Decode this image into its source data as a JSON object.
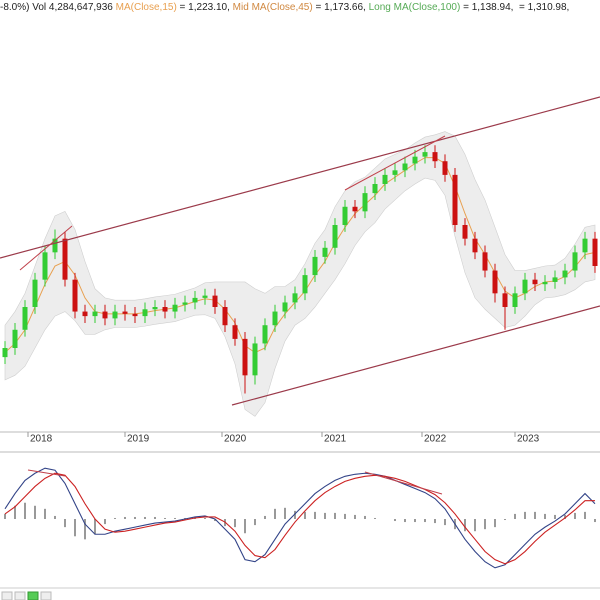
{
  "chart_data": {
    "type": "candlestick",
    "header": [
      {
        "text": "-8.0%) Vol 4,284,647,936 ",
        "color": "#222222"
      },
      {
        "text": "MA(Close,15)",
        "color": "#e8a050"
      },
      {
        "text": " = 1,223.10, ",
        "color": "#222222"
      },
      {
        "text": "Mid MA(Close,45)",
        "color": "#d08840"
      },
      {
        "text": " = 1,173.66, ",
        "color": "#222222"
      },
      {
        "text": "Long MA(Close,100)",
        "color": "#55aa55"
      },
      {
        "text": " = 1,138.94, ",
        "color": "#222222"
      },
      {
        "text": " = 1,310.98,",
        "color": "#222222"
      }
    ],
    "x": [
      0,
      1,
      2,
      3,
      4,
      5,
      6,
      7,
      8,
      9,
      10,
      11,
      12,
      13,
      14,
      15,
      16,
      17,
      18,
      19,
      20,
      21,
      22,
      23,
      24,
      25,
      26,
      27,
      28,
      29,
      30,
      31,
      32,
      33,
      34,
      35,
      36,
      37,
      38,
      39,
      40,
      41,
      42,
      43,
      44,
      45,
      46,
      47,
      48,
      49,
      50,
      51,
      52,
      53,
      54,
      55,
      56,
      57,
      58,
      59
    ],
    "open": [
      760,
      780,
      820,
      870,
      930,
      990,
      1020,
      930,
      860,
      850,
      860,
      845,
      860,
      855,
      850,
      865,
      870,
      860,
      875,
      880,
      890,
      895,
      870,
      830,
      800,
      720,
      790,
      830,
      860,
      880,
      900,
      940,
      980,
      1000,
      1050,
      1090,
      1080,
      1120,
      1140,
      1160,
      1170,
      1185,
      1200,
      1210,
      1190,
      1160,
      1050,
      1020,
      990,
      950,
      900,
      870,
      900,
      930,
      920,
      925,
      935,
      950,
      990,
      1020
    ],
    "high": [
      795,
      835,
      885,
      945,
      1005,
      1040,
      1035,
      945,
      875,
      875,
      875,
      875,
      875,
      870,
      880,
      885,
      885,
      890,
      895,
      905,
      910,
      910,
      885,
      845,
      815,
      805,
      845,
      875,
      895,
      915,
      955,
      995,
      1015,
      1065,
      1105,
      1105,
      1135,
      1155,
      1175,
      1185,
      1200,
      1215,
      1225,
      1225,
      1205,
      1175,
      1065,
      1035,
      1005,
      965,
      915,
      915,
      945,
      945,
      940,
      950,
      965,
      1005,
      1035,
      1035
    ],
    "low": [
      745,
      765,
      805,
      855,
      915,
      975,
      915,
      845,
      835,
      835,
      830,
      830,
      840,
      835,
      835,
      850,
      845,
      845,
      860,
      865,
      875,
      855,
      815,
      785,
      680,
      700,
      775,
      815,
      845,
      865,
      885,
      925,
      965,
      985,
      1035,
      1065,
      1065,
      1105,
      1125,
      1145,
      1155,
      1170,
      1185,
      1175,
      1145,
      1035,
      1005,
      975,
      935,
      880,
      820,
      855,
      885,
      905,
      905,
      910,
      920,
      935,
      975,
      945
    ],
    "close": [
      780,
      820,
      870,
      930,
      990,
      1020,
      930,
      860,
      850,
      860,
      845,
      860,
      855,
      850,
      865,
      870,
      860,
      875,
      880,
      890,
      895,
      870,
      830,
      800,
      720,
      790,
      830,
      860,
      880,
      900,
      940,
      980,
      1000,
      1050,
      1090,
      1080,
      1120,
      1140,
      1160,
      1170,
      1185,
      1200,
      1210,
      1190,
      1160,
      1050,
      1020,
      990,
      950,
      900,
      870,
      900,
      930,
      920,
      925,
      935,
      950,
      990,
      1020,
      960
    ],
    "ma": [
      770,
      790,
      820,
      870,
      920,
      960,
      970,
      940,
      890,
      860,
      855,
      855,
      855,
      855,
      858,
      862,
      865,
      868,
      875,
      882,
      888,
      885,
      865,
      835,
      785,
      770,
      780,
      825,
      855,
      880,
      905,
      940,
      970,
      1010,
      1045,
      1075,
      1095,
      1115,
      1140,
      1155,
      1170,
      1185,
      1198,
      1198,
      1185,
      1135,
      1075,
      1020,
      985,
      945,
      905,
      890,
      900,
      915,
      925,
      927,
      937,
      958,
      985,
      990
    ],
    "band_upper": [
      830,
      860,
      900,
      960,
      1020,
      1070,
      1080,
      1040,
      970,
      910,
      890,
      885,
      885,
      885,
      888,
      892,
      895,
      898,
      905,
      912,
      923,
      925,
      925,
      925,
      925,
      910,
      900,
      915,
      915,
      930,
      965,
      1010,
      1040,
      1090,
      1125,
      1145,
      1155,
      1175,
      1195,
      1205,
      1215,
      1230,
      1243,
      1248,
      1255,
      1245,
      1205,
      1150,
      1105,
      1045,
      985,
      950,
      950,
      955,
      960,
      962,
      977,
      1008,
      1045,
      1050
    ],
    "band_lower": [
      710,
      720,
      740,
      780,
      820,
      850,
      860,
      840,
      810,
      810,
      820,
      825,
      825,
      825,
      828,
      832,
      835,
      838,
      845,
      852,
      853,
      845,
      805,
      745,
      645,
      630,
      660,
      735,
      795,
      830,
      845,
      870,
      900,
      930,
      965,
      1005,
      1035,
      1055,
      1085,
      1105,
      1125,
      1140,
      1153,
      1148,
      1115,
      1025,
      945,
      890,
      865,
      845,
      825,
      830,
      850,
      875,
      890,
      892,
      897,
      908,
      925,
      930
    ],
    "macd": [
      10,
      25,
      38,
      45,
      50,
      48,
      35,
      15,
      -5,
      -15,
      -15,
      -12,
      -10,
      -8,
      -6,
      -4,
      -3,
      -2,
      0,
      2,
      3,
      0,
      -10,
      -20,
      -40,
      -42,
      -35,
      -20,
      -5,
      5,
      15,
      25,
      32,
      38,
      42,
      44,
      45,
      44,
      42,
      38,
      34,
      30,
      26,
      20,
      10,
      -5,
      -20,
      -32,
      -42,
      -48,
      -45,
      -35,
      -25,
      -15,
      -8,
      -2,
      5,
      15,
      25,
      15
    ],
    "signal": [
      5,
      12,
      22,
      32,
      40,
      45,
      43,
      32,
      15,
      0,
      -10,
      -13,
      -12,
      -10,
      -8,
      -6,
      -4,
      -3,
      -1,
      1,
      2,
      2,
      -3,
      -12,
      -26,
      -36,
      -38,
      -30,
      -16,
      -3,
      8,
      18,
      26,
      32,
      37,
      40,
      42,
      43,
      42,
      40,
      37,
      33,
      29,
      24,
      16,
      5,
      -8,
      -20,
      -32,
      -40,
      -44,
      -40,
      -32,
      -22,
      -13,
      -6,
      1,
      9,
      18,
      18
    ],
    "histogram": [
      5,
      13,
      16,
      13,
      10,
      3,
      -8,
      -17,
      -20,
      -15,
      -5,
      1,
      2,
      2,
      2,
      2,
      1,
      1,
      1,
      1,
      1,
      -2,
      -7,
      -8,
      -14,
      -6,
      3,
      10,
      11,
      8,
      7,
      7,
      6,
      6,
      5,
      4,
      3,
      1,
      0,
      -2,
      -3,
      -3,
      -3,
      -4,
      -6,
      -10,
      -12,
      -12,
      -10,
      -8,
      -1,
      5,
      7,
      7,
      5,
      4,
      4,
      6,
      7,
      -3
    ],
    "xlim": [
      -0.5,
      59.5
    ],
    "xticks": [
      {
        "value": 2.3,
        "label": "2018"
      },
      {
        "value": 12,
        "label": "2019"
      },
      {
        "value": 21.7,
        "label": "2020"
      },
      {
        "value": 31.7,
        "label": "2021"
      },
      {
        "value": 41.7,
        "label": "2022"
      },
      {
        "value": 51,
        "label": "2023"
      }
    ],
    "ylim": [
      600,
      1500
    ],
    "y2lim": [
      -60,
      60
    ],
    "up_color": "#33cc33",
    "down_color": "#cc1111",
    "ma_color": "#e8a050",
    "band_color": "#e6e6e6",
    "macd_color": "#334488",
    "signal_color": "#cc2222",
    "hist_color": "#999999"
  }
}
